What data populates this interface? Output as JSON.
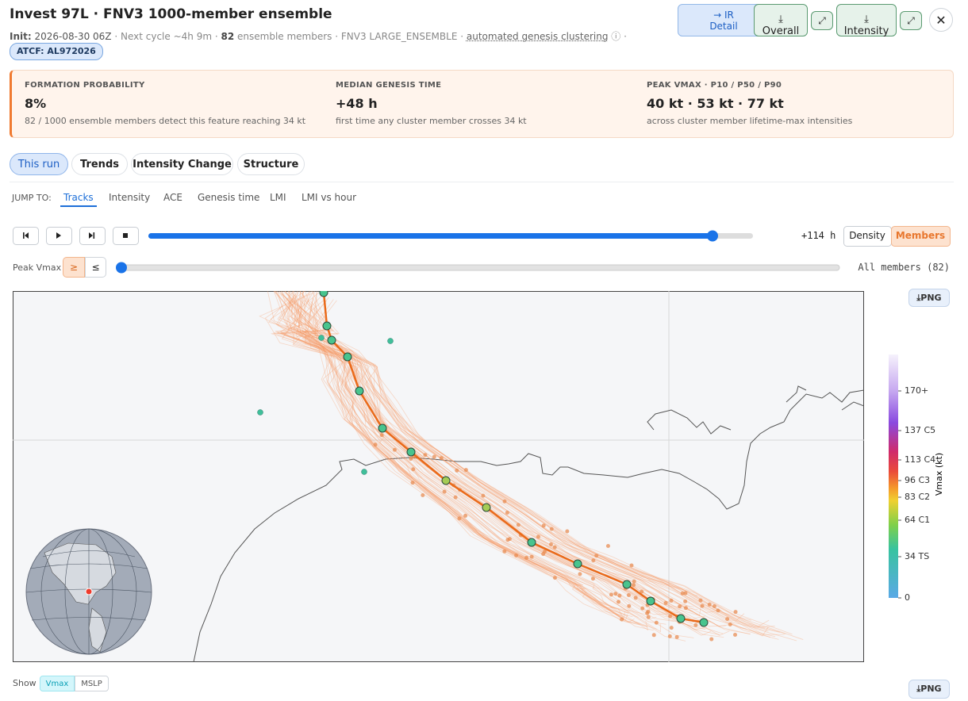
{
  "header": {
    "title": "Invest 97L · FNV3 1000-member ensemble",
    "init_label": "Init:",
    "init": "2026-08-30 06Z",
    "next_cycle": "· Next cycle ~4h 9m ·",
    "members": "82",
    "members_text": "ensemble members · FNV3 LARGE_ENSEMBLE ·",
    "clustering": "automated genesis clustering",
    "info": "ⓘ ·",
    "atcf": "ATCF: AL972026"
  },
  "actions": {
    "ir": "→ IR Detail",
    "overall": "⤓ Overall",
    "expand_overall": "⤢",
    "intensity": "⤓ Intensity",
    "expand_intensity": "⤢",
    "close": "✕"
  },
  "cards": [
    {
      "label": "FORMATION PROBABILITY",
      "value": "8%",
      "note": "82 / 1000 ensemble members detect this feature reaching 34 kt"
    },
    {
      "label": "MEDIAN GENESIS TIME",
      "value": "+48 h",
      "note": "first time any cluster member crosses 34 kt"
    },
    {
      "label": "PEAK VMAX · P10 / P50 / P90",
      "value": "40 kt · 53 kt · 77 kt",
      "note": "across cluster member lifetime-max intensities"
    }
  ],
  "tabs": [
    "This run",
    "Trends",
    "Intensity Change",
    "Structure"
  ],
  "jump": {
    "label": "JUMP TO:",
    "links": [
      "Tracks",
      "Intensity",
      "ACE",
      "Genesis time",
      "LMI",
      "LMI vs hour"
    ]
  },
  "playback": {
    "time": "+114 h",
    "modes": [
      "Density",
      "Members"
    ]
  },
  "filter": {
    "label": "Peak Vmax",
    "ops": [
      "≥",
      "≤"
    ],
    "status": "All members (82)"
  },
  "map": {
    "png": "⤓PNG",
    "colorbar": {
      "title": "Vmax (kt)",
      "labels": [
        "170+",
        "137 C5",
        "113 C4",
        "96 C3",
        "83 C2",
        "64 C1",
        "34 TS",
        "0"
      ]
    }
  },
  "show": {
    "label": "Show",
    "options": [
      "Vmax",
      "MSLP"
    ]
  },
  "bottom_png": "⤓PNG"
}
